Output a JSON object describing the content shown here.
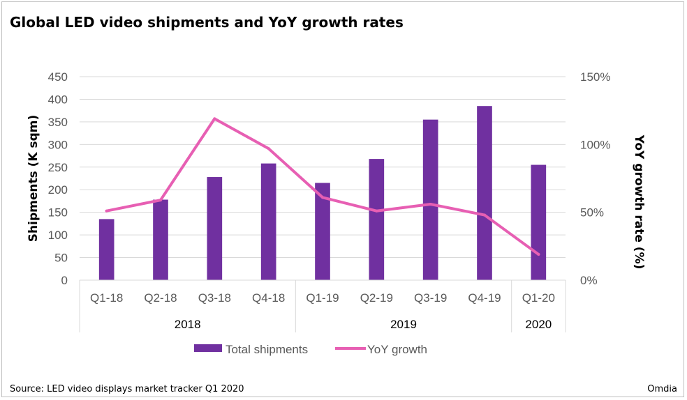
{
  "chart_data": {
    "type": "bar",
    "title": "Global LED video shipments and YoY growth rates",
    "categories": [
      "Q1-18",
      "Q2-18",
      "Q3-18",
      "Q4-18",
      "Q1-19",
      "Q2-19",
      "Q3-19",
      "Q4-19",
      "Q1-20"
    ],
    "groups": [
      {
        "label": "2018",
        "count": 4
      },
      {
        "label": "2019",
        "count": 4
      },
      {
        "label": "2020",
        "count": 1
      }
    ],
    "series": [
      {
        "name": "Total shipments",
        "type": "bar",
        "axis": "left",
        "color": "#7030a0",
        "values": [
          135,
          178,
          228,
          258,
          215,
          268,
          355,
          385,
          255
        ]
      },
      {
        "name": "YoY growth",
        "type": "line",
        "axis": "right",
        "color": "#e75fb3",
        "values": [
          51,
          59,
          119,
          97,
          61,
          51,
          56,
          48,
          19
        ]
      }
    ],
    "ylabel": "Shipments (K sqm)",
    "y2label": "YoY growth rate (%)",
    "ylim": [
      0,
      450
    ],
    "yticks": [
      "0",
      "50",
      "100",
      "150",
      "200",
      "250",
      "300",
      "350",
      "400",
      "450"
    ],
    "y2lim": [
      0,
      150
    ],
    "y2ticks": [
      "0%",
      "50%",
      "100%",
      "150%"
    ],
    "grid": true,
    "legend": "bottom"
  },
  "footer": {
    "source": "Source: LED video displays market tracker Q1 2020",
    "brand": "Omdia"
  }
}
